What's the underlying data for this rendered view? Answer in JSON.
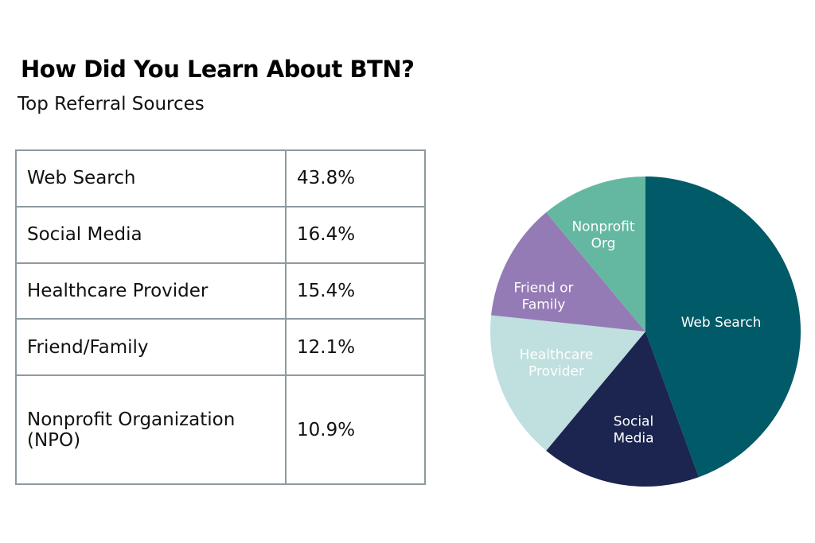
{
  "title": "How Did You Learn About BTN?",
  "subtitle": "Top Referral Sources",
  "table": [
    {
      "source": "Web Search",
      "value": "43.8%"
    },
    {
      "source": "Social Media",
      "value": "16.4%"
    },
    {
      "source": "Healthcare Provider",
      "value": "15.4%"
    },
    {
      "source": "Friend/Family",
      "value": "12.1%"
    },
    {
      "source": "Nonprofit Organization (NPO)",
      "value": "10.9%"
    }
  ],
  "chart_data": {
    "type": "pie",
    "title": "How Did You Learn About BTN?",
    "categories": [
      "Web Search",
      "Social Media",
      "Healthcare Provider",
      "Friend or Family",
      "Nonprofit Org"
    ],
    "labels": [
      [
        "Web Search"
      ],
      [
        "Social",
        "Media"
      ],
      [
        "Healthcare",
        "Provider"
      ],
      [
        "Friend or",
        "Family"
      ],
      [
        "Nonprofit",
        "Org"
      ]
    ],
    "values": [
      43.8,
      16.4,
      15.4,
      12.1,
      10.9
    ],
    "colors": [
      "#005a67",
      "#1b2550",
      "#c0dfdf",
      "#957bb5",
      "#64b8a1"
    ],
    "start": "top, clockwise"
  }
}
